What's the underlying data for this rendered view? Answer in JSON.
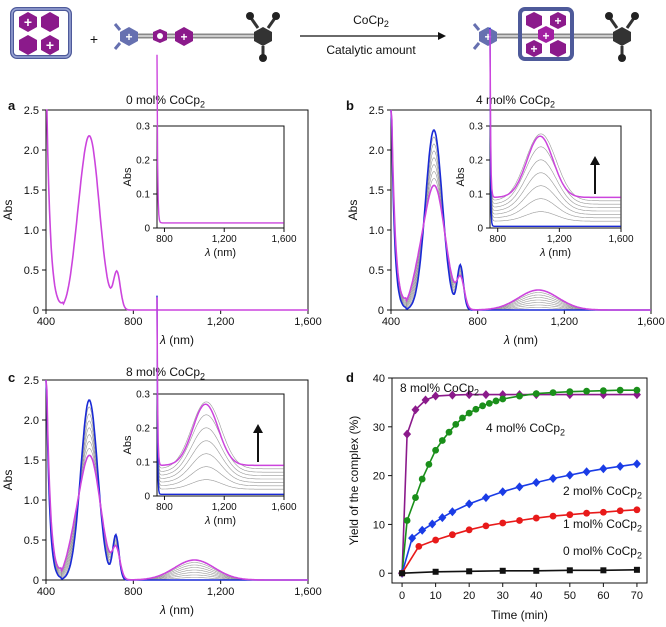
{
  "scheme": {
    "reagent_html": "CoCp<sub>2</sub>",
    "condition": "Catalytic amount",
    "plus": "+"
  },
  "chart_data": [
    {
      "panel": "a",
      "type": "line",
      "title_html": "0 mol% CoCp<sub>2</sub>",
      "xlabel": "λ (nm)",
      "ylabel": "Abs",
      "xlim": [
        400,
        1600
      ],
      "ylim": [
        0,
        2.5
      ],
      "xticks": [
        "400",
        "800",
        "1,200",
        "1,600"
      ],
      "yticks": [
        "0",
        "0.5",
        "1.0",
        "1.5",
        "2.0",
        "2.5"
      ],
      "inset": {
        "xlabel": "λ (nm)",
        "ylabel": "Abs",
        "xlim": [
          750,
          1600
        ],
        "ylim": [
          0,
          0.3
        ],
        "xticks": [
          "800",
          "1,200",
          "1,600"
        ],
        "yticks": [
          "0",
          "0.1",
          "0.2",
          "0.3"
        ]
      }
    },
    {
      "panel": "b",
      "type": "line",
      "title_html": "4 mol% CoCp<sub>2</sub>",
      "xlabel": "λ (nm)",
      "ylabel": "Abs",
      "xlim": [
        400,
        1600
      ],
      "ylim": [
        0,
        2.5
      ],
      "xticks": [
        "400",
        "800",
        "1,200",
        "1,600"
      ],
      "yticks": [
        "0",
        "0.5",
        "1.0",
        "1.5",
        "2.0",
        "2.5"
      ],
      "inset": {
        "xlabel": "λ (nm)",
        "ylabel": "Abs",
        "xlim": [
          750,
          1600
        ],
        "ylim": [
          0,
          0.3
        ],
        "xticks": [
          "800",
          "1,200",
          "1,600"
        ],
        "yticks": [
          "0",
          "0.1",
          "0.2",
          "0.3"
        ]
      },
      "final_nir_peak": {
        "x": 1080,
        "y": 0.25
      }
    },
    {
      "panel": "c",
      "type": "line",
      "title_html": "8 mol% CoCp<sub>2</sub>",
      "xlabel": "λ (nm)",
      "ylabel": "Abs",
      "xlim": [
        400,
        1600
      ],
      "ylim": [
        0,
        2.5
      ],
      "xticks": [
        "400",
        "800",
        "1,200",
        "1,600"
      ],
      "yticks": [
        "0",
        "0.5",
        "1.0",
        "1.5",
        "2.0",
        "2.5"
      ],
      "inset": {
        "xlabel": "λ (nm)",
        "ylabel": "Abs",
        "xlim": [
          750,
          1600
        ],
        "ylim": [
          0,
          0.3
        ],
        "xticks": [
          "800",
          "1,200",
          "1,600"
        ],
        "yticks": [
          "0",
          "0.1",
          "0.2",
          "0.3"
        ]
      },
      "final_nir_peak": {
        "x": 1080,
        "y": 0.25
      }
    },
    {
      "panel": "d",
      "type": "line",
      "xlabel": "Time (min)",
      "ylabel": "Yield of the complex (%)",
      "xlim": [
        -3,
        73
      ],
      "ylim": [
        -2,
        40
      ],
      "xticks": [
        0,
        10,
        20,
        30,
        40,
        50,
        60,
        70
      ],
      "yticks": [
        0,
        10,
        20,
        30,
        40
      ],
      "series": [
        {
          "name_html": "8 mol% CoCp<sub>2</sub>",
          "color": "#8b1a8b",
          "marker": "diamond",
          "x": [
            0,
            1.5,
            4,
            7,
            10,
            15,
            20,
            25,
            30,
            35,
            40,
            50,
            60,
            70
          ],
          "y": [
            0,
            28.5,
            33.5,
            35.5,
            36.3,
            36.5,
            36.6,
            36.6,
            36.6,
            36.6,
            36.6,
            36.6,
            36.6,
            36.6
          ]
        },
        {
          "name_html": "4 mol% CoCp<sub>2</sub>",
          "color": "#1a8f1a",
          "marker": "circle",
          "x": [
            0,
            1.5,
            4,
            6,
            8,
            10,
            12,
            14,
            16,
            18,
            20,
            22,
            24,
            26,
            28,
            30,
            35,
            40,
            45,
            50,
            55,
            60,
            65,
            70
          ],
          "y": [
            0,
            10.8,
            15.5,
            19.3,
            22.3,
            25.2,
            27.2,
            28.9,
            30.5,
            31.8,
            32.8,
            33.6,
            34.3,
            34.8,
            35.3,
            35.7,
            36.3,
            36.8,
            37.0,
            37.2,
            37.3,
            37.4,
            37.5,
            37.5
          ]
        },
        {
          "name_html": "2 mol% CoCp<sub>2</sub>",
          "color": "#1a3ce6",
          "marker": "diamond",
          "x": [
            0,
            3,
            6,
            9,
            12,
            15,
            20,
            25,
            30,
            35,
            40,
            45,
            50,
            55,
            60,
            65,
            70
          ],
          "y": [
            0,
            7.2,
            8.8,
            10.1,
            11.4,
            12.6,
            14.2,
            15.5,
            16.7,
            17.7,
            18.6,
            19.4,
            20.1,
            20.8,
            21.4,
            21.9,
            22.4
          ]
        },
        {
          "name_html": "1 mol% CoCp<sub>2</sub>",
          "color": "#e81a1a",
          "marker": "circle",
          "x": [
            0,
            5,
            10,
            15,
            20,
            25,
            30,
            35,
            40,
            45,
            50,
            55,
            60,
            65,
            70
          ],
          "y": [
            0,
            5.5,
            6.8,
            7.9,
            8.9,
            9.7,
            10.3,
            10.8,
            11.3,
            11.7,
            12.0,
            12.3,
            12.5,
            12.8,
            13.0
          ]
        },
        {
          "name_html": "0 mol% CoCp<sub>2</sub>",
          "color": "#111111",
          "marker": "square",
          "x": [
            0,
            10,
            20,
            30,
            40,
            50,
            60,
            70
          ],
          "y": [
            0,
            0.3,
            0.4,
            0.5,
            0.5,
            0.6,
            0.6,
            0.7
          ]
        }
      ]
    }
  ]
}
